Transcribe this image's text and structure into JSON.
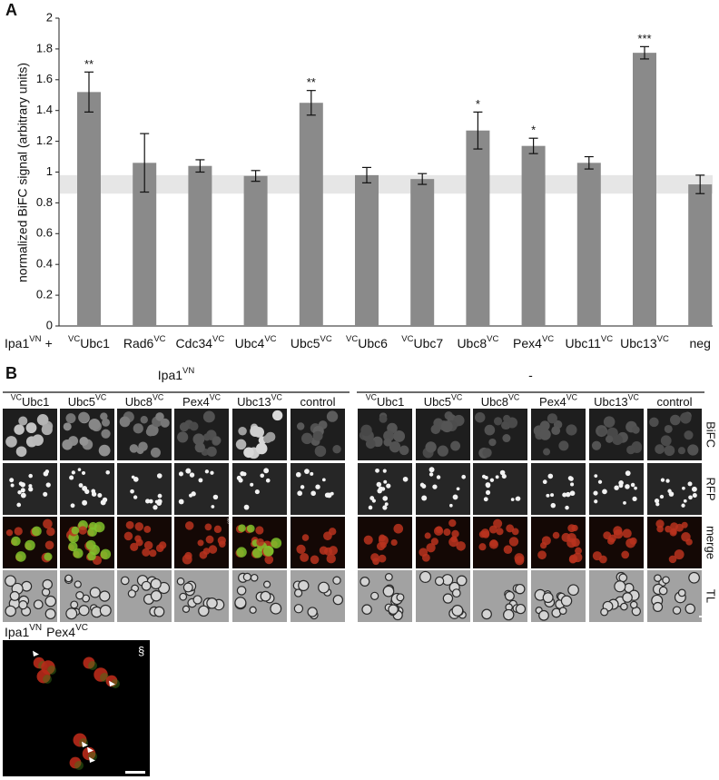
{
  "chart_data": {
    "type": "bar",
    "panel_label": "A",
    "y_label": "normalized BiFC signal (arbitrary units)",
    "x_prefix": {
      "name": "Ipa1",
      "sup": "VN",
      "suffix": "+"
    },
    "categories": [
      {
        "pre": "VC",
        "name": "Ubc1"
      },
      {
        "name": "Rad6",
        "sup": "VC"
      },
      {
        "name": "Cdc34",
        "sup": "VC"
      },
      {
        "name": "Ubc4",
        "sup": "VC"
      },
      {
        "name": "Ubc5",
        "sup": "VC"
      },
      {
        "pre": "VC",
        "name": "Ubc6"
      },
      {
        "pre": "VC",
        "name": "Ubc7"
      },
      {
        "name": "Ubc8",
        "sup": "VC"
      },
      {
        "name": "Pex4",
        "sup": "VC"
      },
      {
        "name": "Ubc11",
        "sup": "VC"
      },
      {
        "name": "Ubc13",
        "sup": "VC"
      },
      {
        "name": "neg"
      }
    ],
    "values": [
      1.52,
      1.06,
      1.04,
      0.975,
      1.45,
      0.98,
      0.955,
      1.27,
      1.17,
      1.06,
      1.775,
      0.92
    ],
    "errors": [
      0.13,
      0.19,
      0.04,
      0.035,
      0.08,
      0.05,
      0.035,
      0.12,
      0.05,
      0.04,
      0.04,
      0.06
    ],
    "significance": [
      "**",
      null,
      null,
      null,
      "**",
      null,
      null,
      "*",
      "*",
      null,
      "***",
      null
    ],
    "color": "#8a8a8a",
    "band": [
      0.86,
      0.98
    ],
    "band_color": "#e6e6e6",
    "ylim": [
      0,
      2
    ],
    "yticks": [
      0,
      0.2,
      0.4,
      0.6,
      0.8,
      1,
      1.2,
      1.4,
      1.6,
      1.8,
      2
    ]
  },
  "panel_b": {
    "panel_label": "B",
    "groups": [
      {
        "title": {
          "name": "Ipa1",
          "sup": "VN"
        },
        "columns": [
          {
            "pre": "VC",
            "name": "Ubc1"
          },
          {
            "name": "Ubc5",
            "sup": "VC"
          },
          {
            "name": "Ubc8",
            "sup": "VC"
          },
          {
            "name": "Pex4",
            "sup": "VC"
          },
          {
            "name": "Ubc13",
            "sup": "VC"
          },
          {
            "name": "control"
          }
        ]
      },
      {
        "title": {
          "name": "-"
        },
        "columns": [
          {
            "pre": "VC",
            "name": "Ubc1"
          },
          {
            "name": "Ubc5",
            "sup": "VC"
          },
          {
            "name": "Ubc8",
            "sup": "VC"
          },
          {
            "name": "Pex4",
            "sup": "VC"
          },
          {
            "name": "Ubc13",
            "sup": "VC"
          },
          {
            "name": "control"
          }
        ]
      }
    ],
    "rows": [
      "BiFC",
      "RFP",
      "merge",
      "TL"
    ],
    "marker": "§",
    "inset": {
      "label": [
        {
          "name": "Ipa1",
          "sup": "VN"
        },
        {
          "name": "Pex4",
          "sup": "VC"
        }
      ],
      "marker": "§"
    }
  }
}
